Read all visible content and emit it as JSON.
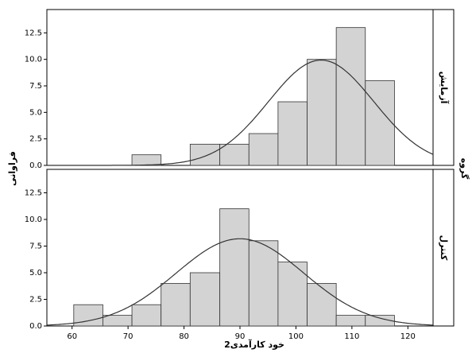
{
  "axis_titles": {
    "x": "خود کارآمدی2",
    "y": "فراوانی",
    "group": "گروه"
  },
  "chart_data": [
    {
      "type": "histogram",
      "panel_label": "آزمایش",
      "bins": [
        60.3,
        65.5,
        70.7,
        75.9,
        81.1,
        86.4,
        91.6,
        96.8,
        102,
        107.2,
        112.4,
        117.6
      ],
      "counts": [
        0,
        0,
        1,
        0,
        2,
        2,
        3,
        6,
        10,
        13,
        8
      ],
      "curve": {
        "mean": 104.5,
        "sd": 9.4
      },
      "color": "#d3d3d3",
      "xlim": [
        55.5,
        124.5
      ],
      "ylim": [
        0,
        14.7
      ],
      "yticks": [
        {
          "value": 0,
          "label": "0.0"
        },
        2.5,
        {
          "value": 5,
          "label": "5.0"
        },
        7.5,
        {
          "value": 10,
          "label": "10.0"
        },
        12.5
      ]
    },
    {
      "type": "histogram",
      "panel_label": "کنترل",
      "bins": [
        60.3,
        65.5,
        70.7,
        75.9,
        81.1,
        86.4,
        91.6,
        96.8,
        102,
        107.2,
        112.4,
        117.6
      ],
      "counts": [
        2,
        1,
        2,
        4,
        5,
        11,
        8,
        6,
        4,
        1,
        1
      ],
      "curve": {
        "mean": 90,
        "sd": 11.4
      },
      "color": "#d3d3d3",
      "xlim": [
        55.5,
        124.5
      ],
      "ylim": [
        0,
        14.7
      ],
      "yticks": [
        {
          "value": 0,
          "label": "0.0"
        },
        2.5,
        {
          "value": 5,
          "label": "5.0"
        },
        7.5,
        {
          "value": 10,
          "label": "10.0"
        },
        12.5
      ],
      "xticks": [
        60,
        70,
        80,
        90,
        100,
        110,
        120
      ]
    }
  ]
}
